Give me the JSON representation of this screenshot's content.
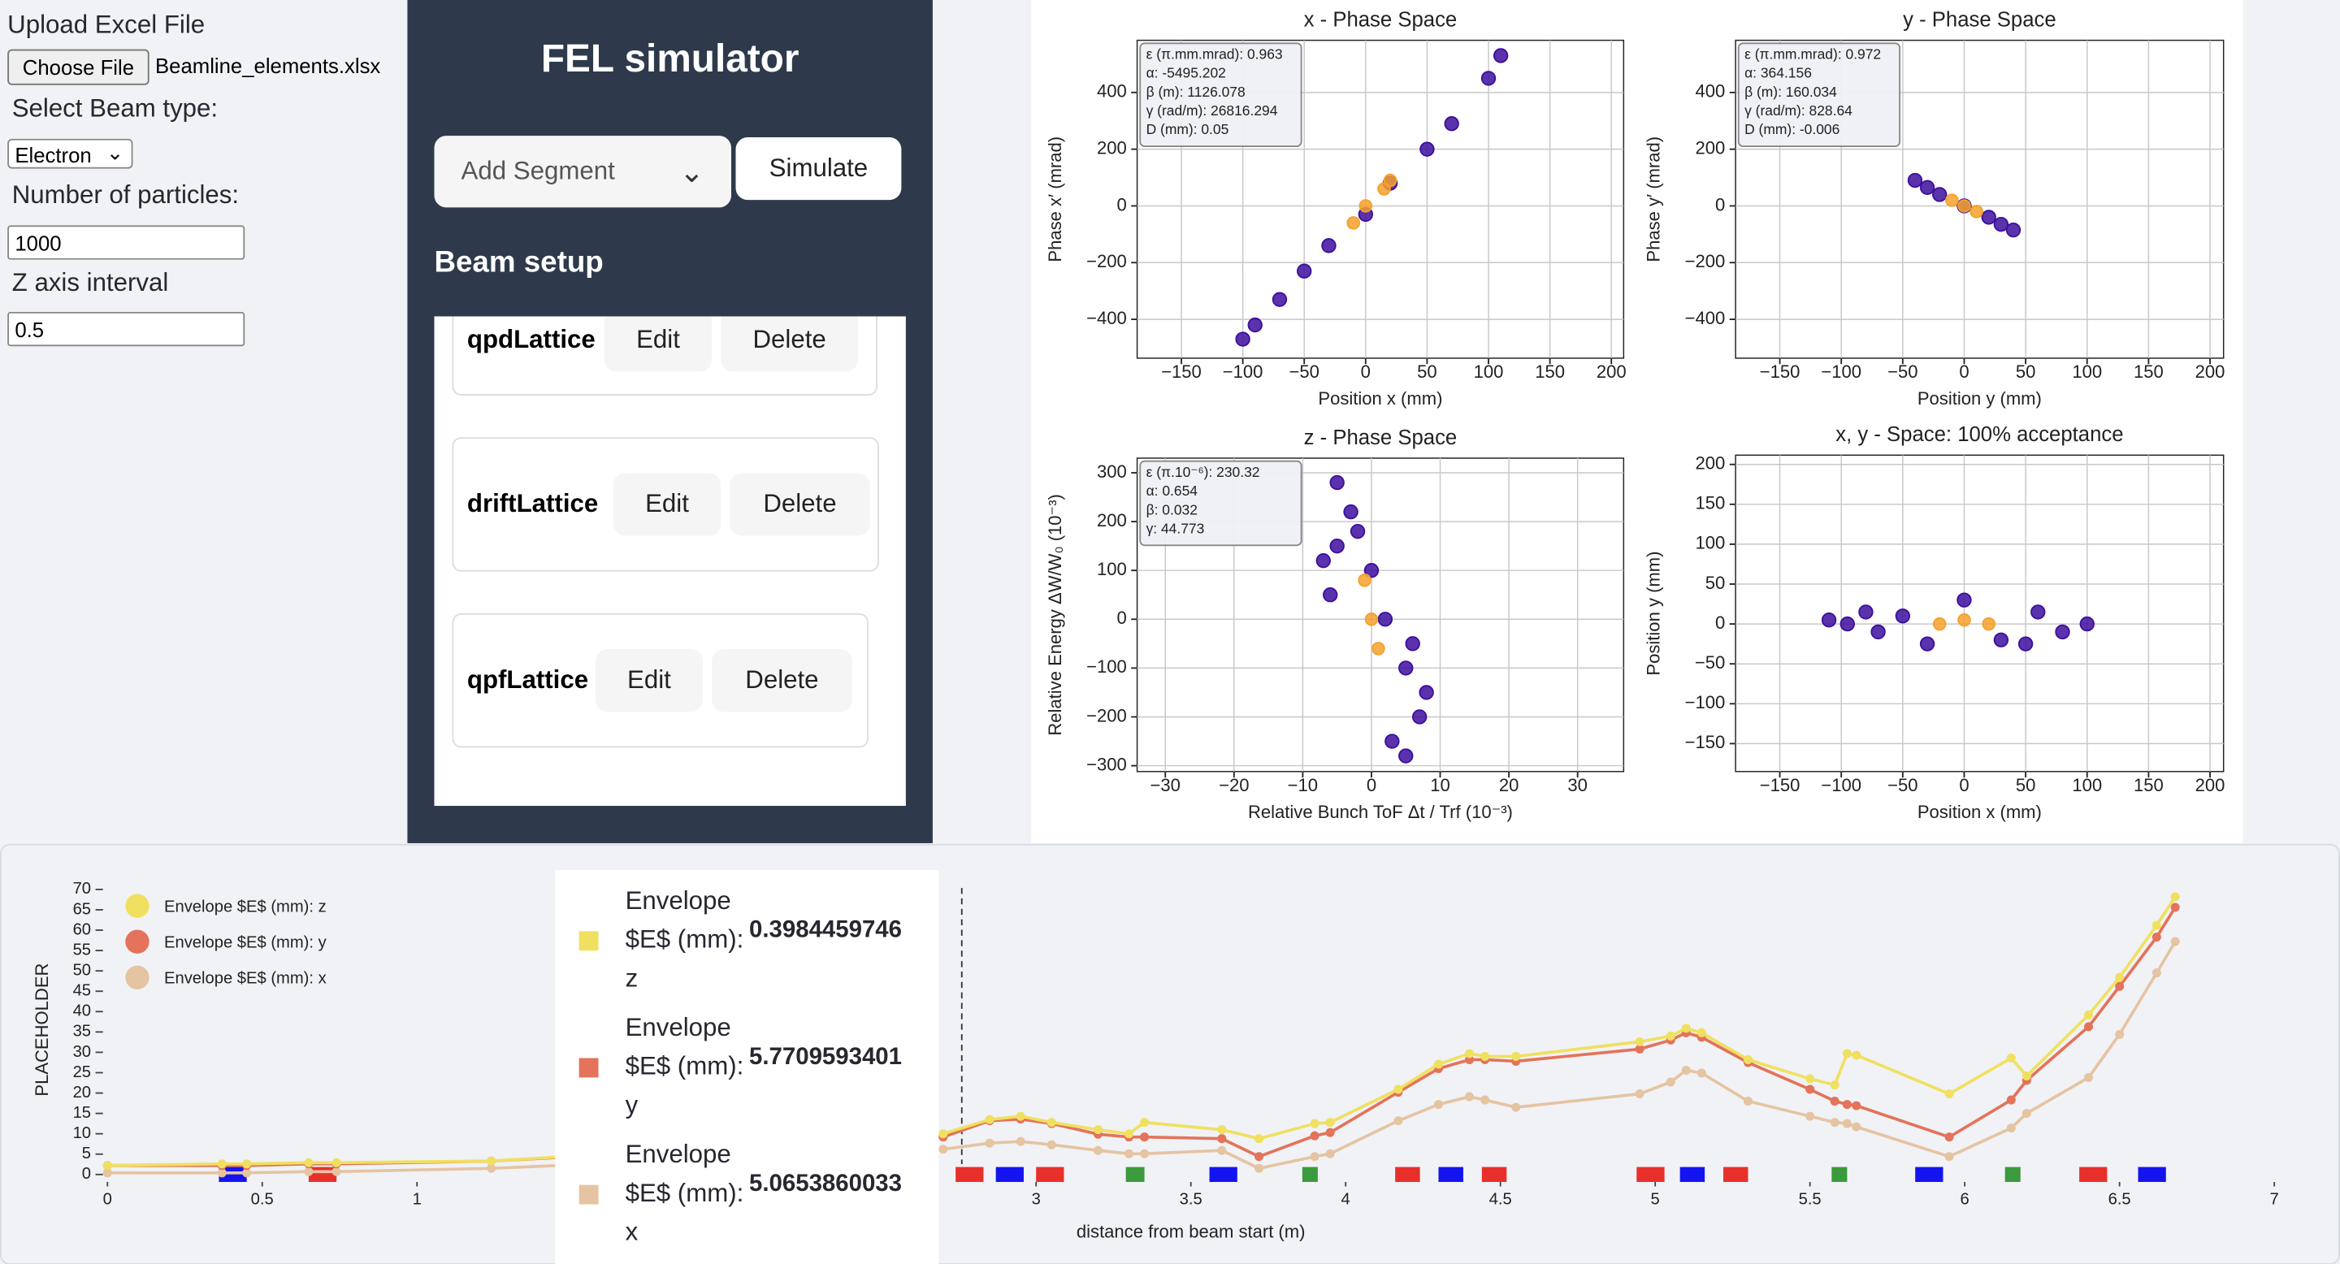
{
  "sidebar": {
    "upload_label": "Upload Excel File",
    "choose_button": "Choose File",
    "file_name": "Beamline_elements.xlsx",
    "beam_type_label": "Select Beam type:",
    "beam_type": "Electron",
    "particles_label": "Number of particles:",
    "particles": 1000,
    "z_interval_label": "Z axis interval",
    "z_interval": 0.5
  },
  "panel": {
    "title": "FEL simulator",
    "segment_select": "Add Segment",
    "simulate_button": "Simulate",
    "section": "Beam setup",
    "segments": [
      {
        "name": "qpdLattice",
        "edit": "Edit",
        "delete": "Delete"
      },
      {
        "name": "driftLattice",
        "edit": "Edit",
        "delete": "Delete"
      },
      {
        "name": "qpfLattice",
        "edit": "Edit",
        "delete": "Delete"
      }
    ]
  },
  "chart_data": [
    {
      "type": "scatter",
      "title": "x - Phase Space",
      "x_label": "Position x (mm)",
      "y_label": "Phase x′ (mrad)",
      "grid": true,
      "xlim": [
        -186,
        210
      ],
      "ylim": [
        -537,
        584
      ],
      "xticks": [
        {
          "value": -150,
          "label": "−150"
        },
        {
          "value": -100,
          "label": "−100"
        },
        {
          "value": -50,
          "label": "−50"
        },
        0,
        50,
        100,
        150,
        200
      ],
      "yticks": [
        {
          "value": -400,
          "label": "−400"
        },
        {
          "value": -200,
          "label": "−200"
        },
        0,
        200,
        400
      ],
      "annotation": [
        "ε (π.mm.mrad): 0.963",
        "α: -5495.202",
        "β (m): 1126.078",
        "γ (rad/m): 26816.294",
        "D (mm): 0.05"
      ],
      "series": [
        {
          "color": "#3d0f9e",
          "x": [
            -100,
            -90,
            -70,
            -50,
            -30,
            0,
            20,
            50,
            70,
            100,
            110
          ],
          "y": [
            -470,
            -420,
            -330,
            -230,
            -140,
            -30,
            80,
            200,
            290,
            450,
            530
          ]
        },
        {
          "color": "#f5a12c",
          "x": [
            -10,
            0,
            15,
            20
          ],
          "y": [
            -60,
            0,
            60,
            90
          ]
        }
      ]
    },
    {
      "type": "scatter",
      "title": "y - Phase Space",
      "x_label": "Position y (mm)",
      "y_label": "Phase y′ (mrad)",
      "grid": true,
      "xlim": [
        -186,
        211
      ],
      "ylim": [
        -537,
        584
      ],
      "xticks": [
        {
          "value": -150,
          "label": "−150"
        },
        {
          "value": -100,
          "label": "−100"
        },
        {
          "value": -50,
          "label": "−50"
        },
        0,
        50,
        100,
        150,
        200
      ],
      "yticks": [
        {
          "value": -400,
          "label": "−400"
        },
        {
          "value": -200,
          "label": "−200"
        },
        0,
        200,
        400
      ],
      "annotation": [
        "ε (π.mm.mrad): 0.972",
        "α: 364.156",
        "β (m): 160.034",
        "γ (rad/m): 828.64",
        "D (mm): -0.006"
      ],
      "series": [
        {
          "color": "#3d0f9e",
          "x": [
            -40,
            -30,
            -20,
            0,
            20,
            30,
            40
          ],
          "y": [
            90,
            65,
            40,
            0,
            -40,
            -65,
            -85
          ]
        },
        {
          "color": "#f5a12c",
          "x": [
            -10,
            0,
            10
          ],
          "y": [
            20,
            0,
            -20
          ]
        }
      ]
    },
    {
      "type": "scatter",
      "title": "z - Phase Space",
      "x_label": "Relative Bunch ToF Δt / Trf (10⁻³)",
      "y_label": "Relative Energy ΔW/W₀ (10⁻³)",
      "grid": true,
      "xlim": [
        -34.1,
        36.7
      ],
      "ylim": [
        -312,
        330
      ],
      "xticks": [
        {
          "value": -30,
          "label": "−30"
        },
        {
          "value": -20,
          "label": "−20"
        },
        {
          "value": -10,
          "label": "−10"
        },
        0,
        10,
        20,
        30
      ],
      "yticks": [
        {
          "value": -300,
          "label": "−300"
        },
        {
          "value": -200,
          "label": "−200"
        },
        {
          "value": -100,
          "label": "−100"
        },
        0,
        100,
        200,
        300
      ],
      "annotation": [
        "ε (π.10⁻⁶): 230.32",
        "α: 0.654",
        "β: 0.032",
        "γ: 44.773"
      ],
      "series": [
        {
          "color": "#3d0f9e",
          "x": [
            -5,
            -3,
            -5,
            -6,
            0,
            2,
            6,
            5,
            7,
            3,
            5,
            -2,
            -7,
            8
          ],
          "y": [
            280,
            220,
            150,
            50,
            100,
            0,
            -50,
            -100,
            -200,
            -250,
            -280,
            180,
            120,
            -150
          ]
        },
        {
          "color": "#f5a12c",
          "x": [
            -1,
            0,
            1
          ],
          "y": [
            80,
            0,
            -60
          ]
        }
      ]
    },
    {
      "type": "scatter",
      "title": "x, y - Space: 100% acceptance",
      "x_label": "Position x (mm)",
      "y_label": "Position y (mm)",
      "grid": true,
      "xlim": [
        -186,
        211
      ],
      "ylim": [
        -185,
        211.6
      ],
      "xticks": [
        {
          "value": -150,
          "label": "−150"
        },
        {
          "value": -100,
          "label": "−100"
        },
        {
          "value": -50,
          "label": "−50"
        },
        0,
        50,
        100,
        150,
        200
      ],
      "yticks": [
        {
          "value": -150,
          "label": "−150"
        },
        {
          "value": -100,
          "label": "−100"
        },
        {
          "value": -50,
          "label": "−50"
        },
        0,
        50,
        100,
        150,
        200
      ],
      "series": [
        {
          "color": "#3d0f9e",
          "x": [
            -110,
            -95,
            -80,
            -70,
            -50,
            -30,
            0,
            30,
            50,
            60,
            80,
            100
          ],
          "y": [
            5,
            0,
            15,
            -10,
            10,
            -25,
            30,
            -20,
            -25,
            15,
            -10,
            0
          ]
        },
        {
          "color": "#f5a12c",
          "x": [
            -20,
            0,
            20
          ],
          "y": [
            0,
            5,
            0
          ]
        }
      ]
    },
    {
      "type": "line",
      "y_label": "PLACEHOLDER",
      "x_label": "distance from beam start (m)",
      "xlim": [
        0,
        7
      ],
      "ylim": [
        0,
        70
      ],
      "xticks": [
        0,
        0.5,
        1,
        1.5,
        2,
        2.5,
        3,
        3.5,
        4,
        4.5,
        5,
        5.5,
        6,
        6.5,
        7
      ],
      "yticks": [
        0,
        5,
        10,
        15,
        20,
        25,
        30,
        35,
        40,
        45,
        50,
        55,
        60,
        65,
        70
      ],
      "cursor": 2.76,
      "x": [
        0,
        0.37,
        0.45,
        0.65,
        0.74,
        1.24,
        2.7,
        2.85,
        2.95,
        3.05,
        3.2,
        3.3,
        3.35,
        3.6,
        3.72,
        3.9,
        3.95,
        4.17,
        4.3,
        4.4,
        4.45,
        4.55,
        4.95,
        5.05,
        5.1,
        5.15,
        5.3,
        5.5,
        5.58,
        5.62,
        5.65,
        5.95,
        6.15,
        6.2,
        6.4,
        6.5,
        6.62,
        6.68
      ],
      "series": [
        {
          "name": "Envelope $E$ (mm): z",
          "color": "#f0e060",
          "values": [
            2.2,
            2.6,
            2.6,
            2.9,
            2.9,
            3.3,
            10,
            13.5,
            14.3,
            12.8,
            11,
            10,
            12.8,
            11,
            8.8,
            12.5,
            12.8,
            20.9,
            27.1,
            29.7,
            29,
            29,
            32.6,
            34,
            35.9,
            34.8,
            28.2,
            23.5,
            22,
            29.7,
            29.3,
            19.8,
            28.6,
            24.2,
            39.2,
            48.4,
            61.2,
            68.2
          ]
        },
        {
          "name": "Envelope $E$ (mm): y",
          "color": "#e3735a",
          "values": [
            2.2,
            2.2,
            2.2,
            2.6,
            2.6,
            3.3,
            9.2,
            13.2,
            13.6,
            12.5,
            9.9,
            9.2,
            9.2,
            8.8,
            4.4,
            9.5,
            10.3,
            20.2,
            26,
            28.2,
            28.2,
            27.8,
            30.8,
            33,
            34.8,
            33.7,
            27.5,
            20.9,
            18,
            17.2,
            16.9,
            9.2,
            18.3,
            23.1,
            36.3,
            46.2,
            58.3,
            65.6
          ]
        },
        {
          "name": "Envelope $E$ (mm): x",
          "color": "#e5c4a2",
          "values": [
            0.4,
            0.4,
            0.4,
            0.7,
            0.7,
            1.5,
            6.2,
            7.7,
            8.1,
            7.3,
            5.9,
            5.1,
            5.1,
            5.9,
            1.5,
            4.4,
            5.1,
            13.2,
            17.2,
            19.1,
            18.3,
            16.5,
            19.8,
            22.7,
            25.6,
            24.9,
            18,
            14.3,
            12.8,
            12.5,
            11.7,
            4.4,
            11.4,
            15,
            23.8,
            34.4,
            49.5,
            57.2
          ]
        }
      ],
      "elements": [
        {
          "x0": 0.36,
          "x1": 0.45,
          "color": "#1414f0"
        },
        {
          "x0": 0.65,
          "x1": 0.74,
          "color": "#e8302a"
        },
        {
          "x0": 2.74,
          "x1": 2.83,
          "color": "#e8302a"
        },
        {
          "x0": 2.87,
          "x1": 2.96,
          "color": "#1414f0"
        },
        {
          "x0": 3.0,
          "x1": 3.09,
          "color": "#e8302a"
        },
        {
          "x0": 3.29,
          "x1": 3.35,
          "color": "#3b9a3b"
        },
        {
          "x0": 3.56,
          "x1": 3.65,
          "color": "#1414f0"
        },
        {
          "x0": 3.86,
          "x1": 3.91,
          "color": "#3b9a3b"
        },
        {
          "x0": 4.16,
          "x1": 4.24,
          "color": "#e8302a"
        },
        {
          "x0": 4.3,
          "x1": 4.38,
          "color": "#1414f0"
        },
        {
          "x0": 4.44,
          "x1": 4.52,
          "color": "#e8302a"
        },
        {
          "x0": 4.94,
          "x1": 5.03,
          "color": "#e8302a"
        },
        {
          "x0": 5.08,
          "x1": 5.16,
          "color": "#1414f0"
        },
        {
          "x0": 5.22,
          "x1": 5.3,
          "color": "#e8302a"
        },
        {
          "x0": 5.57,
          "x1": 5.62,
          "color": "#3b9a3b"
        },
        {
          "x0": 5.84,
          "x1": 5.93,
          "color": "#1414f0"
        },
        {
          "x0": 6.13,
          "x1": 6.18,
          "color": "#3b9a3b"
        },
        {
          "x0": 6.37,
          "x1": 6.46,
          "color": "#e8302a"
        },
        {
          "x0": 6.56,
          "x1": 6.65,
          "color": "#1414f0"
        }
      ]
    }
  ],
  "tooltip": {
    "values": [
      0.3984459746,
      5.7709593401,
      5.0653860033
    ]
  }
}
